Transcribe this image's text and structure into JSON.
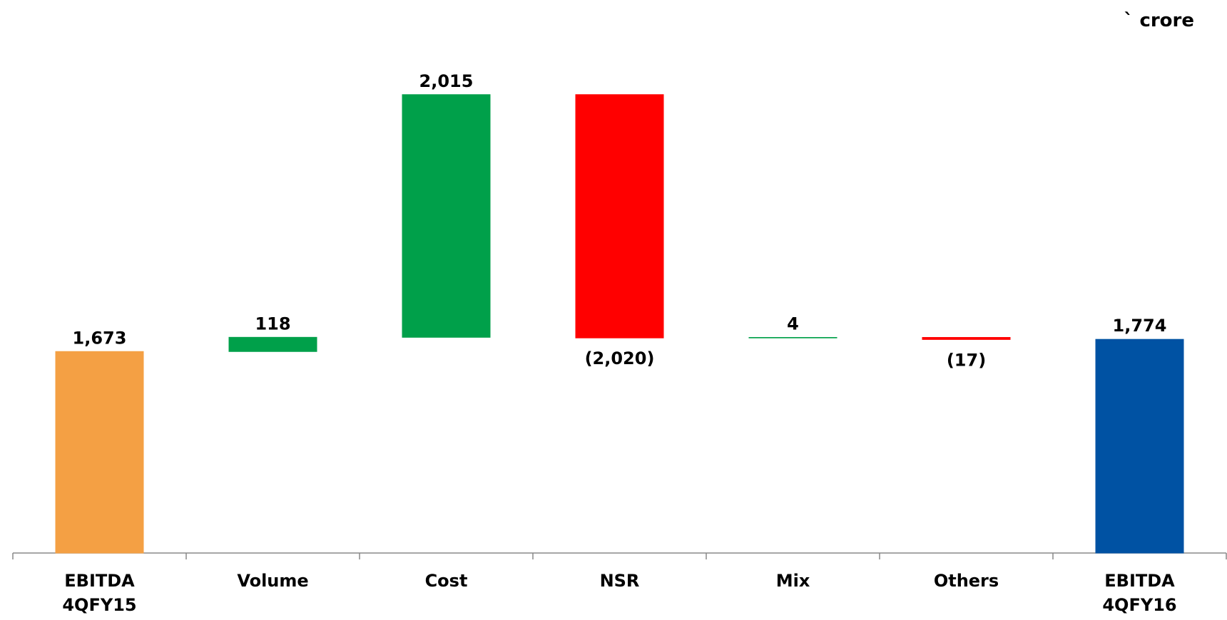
{
  "chart_data": {
    "type": "waterfall",
    "unit_label": "` crore",
    "categories": [
      "EBITDA 4QFY15",
      "Volume",
      "Cost",
      "NSR",
      "Mix",
      "Others",
      "EBITDA 4QFY16"
    ],
    "values": [
      1673,
      118,
      2015,
      -2020,
      4,
      -17,
      1774
    ],
    "value_labels": [
      "1,673",
      "118",
      "2,015",
      "(2,020)",
      "4",
      "(17)",
      "1,774"
    ],
    "totals": [
      true,
      false,
      false,
      false,
      false,
      false,
      true
    ],
    "colors": [
      "#f4a044",
      "#00a04a",
      "#00a04a",
      "#ff0000",
      "#00a04a",
      "#ff0000",
      "#0052a3"
    ],
    "ylim": [
      0,
      4000
    ]
  }
}
